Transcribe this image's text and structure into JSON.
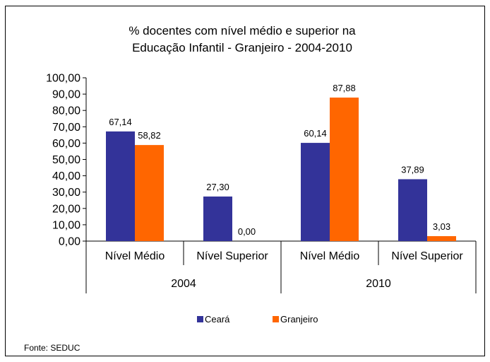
{
  "chart_data": {
    "type": "bar",
    "title_lines": [
      "% docentes com nível médio e superior na",
      "Educação Infantil - Granjeiro - 2004-2010"
    ],
    "groups": [
      {
        "year": "2004",
        "categories": [
          "Nível Médio",
          "Nível Superior"
        ]
      },
      {
        "year": "2010",
        "categories": [
          "Nível Médio",
          "Nível Superior"
        ]
      }
    ],
    "categories": [
      "Nível Médio",
      "Nível Superior",
      "Nível Médio",
      "Nível Superior"
    ],
    "series": [
      {
        "name": "Ceará",
        "color": "#333399",
        "values": [
          67.14,
          27.3,
          60.14,
          37.89
        ],
        "labels": [
          "67,14",
          "27,30",
          "60,14",
          "37,89"
        ]
      },
      {
        "name": "Granjeiro",
        "color": "#FF6600",
        "values": [
          58.82,
          0.0,
          87.88,
          3.03
        ],
        "labels": [
          "58,82",
          "0,00",
          "87,88",
          "3,03"
        ]
      }
    ],
    "ylim": [
      0,
      100
    ],
    "yticks": [
      "0,00",
      "10,00",
      "20,00",
      "30,00",
      "40,00",
      "50,00",
      "60,00",
      "70,00",
      "80,00",
      "90,00",
      "100,00"
    ],
    "grid": false,
    "legend_position": "bottom"
  },
  "source": "Fonte: SEDUC"
}
